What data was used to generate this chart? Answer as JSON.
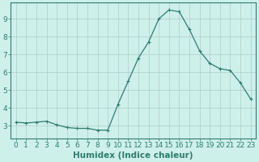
{
  "x": [
    0,
    1,
    2,
    3,
    4,
    5,
    6,
    7,
    8,
    9,
    10,
    11,
    12,
    13,
    14,
    15,
    16,
    17,
    18,
    19,
    20,
    21,
    22,
    23
  ],
  "y": [
    3.2,
    3.15,
    3.2,
    3.25,
    3.05,
    2.9,
    2.85,
    2.85,
    2.75,
    2.75,
    4.2,
    5.5,
    6.8,
    7.7,
    9.0,
    9.5,
    9.4,
    8.4,
    7.2,
    6.5,
    6.2,
    6.1,
    5.4,
    4.5
  ],
  "line_color": "#2e7d6e",
  "marker": "+",
  "marker_size": 3,
  "marker_lw": 0.8,
  "bg_color": "#cef0ea",
  "grid_color": "#b0ccc8",
  "xlabel": "Humidex (Indice chaleur)",
  "xlim": [
    -0.5,
    23.5
  ],
  "ylim": [
    2.3,
    9.9
  ],
  "yticks": [
    3,
    4,
    5,
    6,
    7,
    8,
    9
  ],
  "xticks": [
    0,
    1,
    2,
    3,
    4,
    5,
    6,
    7,
    8,
    9,
    10,
    11,
    12,
    13,
    14,
    15,
    16,
    17,
    18,
    19,
    20,
    21,
    22,
    23
  ],
  "tick_color": "#2e7d6e",
  "spine_color": "#2e7d6e",
  "font_size": 6.5,
  "xlabel_fontsize": 7.5,
  "line_width": 0.9
}
